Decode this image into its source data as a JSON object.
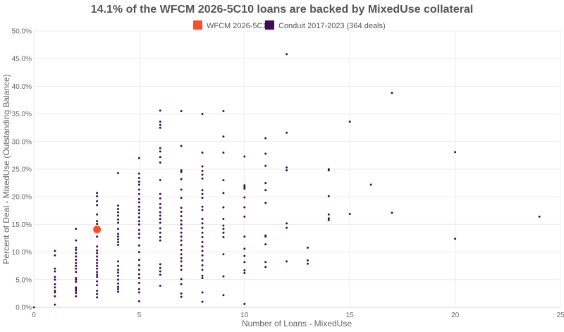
{
  "chart_data": {
    "type": "scatter",
    "title": "14.1% of the WFCM 2026-5C10 loans are backed by MixedUse collateral",
    "xlabel": "Number of Loans - MixedUse",
    "ylabel": "Percent of Deal - MixedUse (Outstanding Balance)",
    "xlim": [
      0,
      25
    ],
    "ylim": [
      0,
      50
    ],
    "x_ticks": [
      "0",
      "5",
      "10",
      "15",
      "20",
      "25"
    ],
    "x_tick_values": [
      0,
      5,
      10,
      15,
      20,
      25
    ],
    "y_ticks": [
      "0.0%",
      "5.0%",
      "10.0%",
      "15.0%",
      "20.0%",
      "25.0%",
      "30.0%",
      "35.0%",
      "40.0%",
      "45.0%",
      "50.0%"
    ],
    "y_tick_values": [
      0,
      5,
      10,
      15,
      20,
      25,
      30,
      35,
      40,
      45,
      50
    ],
    "grid": true,
    "legend_position": "top-center",
    "series": [
      {
        "name": "WFCM 2026-5C10",
        "color": "#f4512c",
        "points": [
          [
            3,
            14.1
          ]
        ]
      },
      {
        "name": "Conduit 2017-2023 (364 deals)",
        "color": "#3d0e57",
        "points": [
          [
            0,
            0.0
          ],
          [
            1,
            0.5
          ],
          [
            1,
            2.0
          ],
          [
            1,
            2.7
          ],
          [
            1,
            3.0
          ],
          [
            1,
            3.6
          ],
          [
            1,
            4.2
          ],
          [
            1,
            5.0
          ],
          [
            1,
            5.5
          ],
          [
            1,
            6.5
          ],
          [
            1,
            7.0
          ],
          [
            1,
            9.4
          ],
          [
            1,
            10.2
          ],
          [
            2,
            2.0
          ],
          [
            2,
            2.6
          ],
          [
            2,
            3.0
          ],
          [
            2,
            3.3
          ],
          [
            2,
            3.6
          ],
          [
            2,
            4.6
          ],
          [
            2,
            5.0
          ],
          [
            2,
            5.3
          ],
          [
            2,
            6.4
          ],
          [
            2,
            7.0
          ],
          [
            2,
            7.5
          ],
          [
            2,
            8.0
          ],
          [
            2,
            8.6
          ],
          [
            2,
            9.2
          ],
          [
            2,
            9.8
          ],
          [
            2,
            10.4
          ],
          [
            2,
            10.8
          ],
          [
            2,
            12.1
          ],
          [
            2,
            14.2
          ],
          [
            3,
            1.8
          ],
          [
            3,
            2.4
          ],
          [
            3,
            3.0
          ],
          [
            3,
            4.0
          ],
          [
            3,
            4.7
          ],
          [
            3,
            5.5
          ],
          [
            3,
            5.9
          ],
          [
            3,
            6.4
          ],
          [
            3,
            7.0
          ],
          [
            3,
            7.5
          ],
          [
            3,
            8.0
          ],
          [
            3,
            8.6
          ],
          [
            3,
            9.2
          ],
          [
            3,
            9.8
          ],
          [
            3,
            10.3
          ],
          [
            3,
            11.0
          ],
          [
            3,
            12.8
          ],
          [
            3,
            13.9
          ],
          [
            3,
            15.1
          ],
          [
            3,
            15.6
          ],
          [
            3,
            16.8
          ],
          [
            3,
            18.5
          ],
          [
            3,
            19.2
          ],
          [
            3,
            20.1
          ],
          [
            3,
            20.7
          ],
          [
            4,
            2.8
          ],
          [
            4,
            3.3
          ],
          [
            4,
            3.7
          ],
          [
            4,
            4.3
          ],
          [
            4,
            5.0
          ],
          [
            4,
            5.7
          ],
          [
            4,
            6.3
          ],
          [
            4,
            6.8
          ],
          [
            4,
            7.5
          ],
          [
            4,
            8.3
          ],
          [
            4,
            11.3
          ],
          [
            4,
            11.8
          ],
          [
            4,
            12.3
          ],
          [
            4,
            12.8
          ],
          [
            4,
            13.3
          ],
          [
            4,
            14.2
          ],
          [
            4,
            15.3
          ],
          [
            4,
            15.9
          ],
          [
            4,
            16.6
          ],
          [
            4,
            17.2
          ],
          [
            4,
            17.8
          ],
          [
            4,
            18.4
          ],
          [
            4,
            24.3
          ],
          [
            5,
            1.1
          ],
          [
            5,
            2.7
          ],
          [
            5,
            3.3
          ],
          [
            5,
            4.4
          ],
          [
            5,
            5.3
          ],
          [
            5,
            6.0
          ],
          [
            5,
            6.8
          ],
          [
            5,
            7.6
          ],
          [
            5,
            8.6
          ],
          [
            5,
            10.0
          ],
          [
            5,
            11.2
          ],
          [
            5,
            12.6
          ],
          [
            5,
            13.3
          ],
          [
            5,
            14.0
          ],
          [
            5,
            15.0
          ],
          [
            5,
            15.6
          ],
          [
            5,
            16.3
          ],
          [
            5,
            17.0
          ],
          [
            5,
            17.6
          ],
          [
            5,
            18.2
          ],
          [
            5,
            19.0
          ],
          [
            5,
            19.6
          ],
          [
            5,
            20.5
          ],
          [
            5,
            21.3
          ],
          [
            5,
            22.2
          ],
          [
            5,
            22.7
          ],
          [
            5,
            23.4
          ],
          [
            5,
            24.2
          ],
          [
            5,
            27.0
          ],
          [
            6,
            3.9
          ],
          [
            6,
            5.9
          ],
          [
            6,
            6.5
          ],
          [
            6,
            7.1
          ],
          [
            6,
            7.8
          ],
          [
            6,
            12.1
          ],
          [
            6,
            12.7
          ],
          [
            6,
            13.5
          ],
          [
            6,
            14.3
          ],
          [
            6,
            15.3
          ],
          [
            6,
            16.0
          ],
          [
            6,
            16.6
          ],
          [
            6,
            17.2
          ],
          [
            6,
            18.0
          ],
          [
            6,
            18.7
          ],
          [
            6,
            19.7
          ],
          [
            6,
            20.5
          ],
          [
            6,
            23.0
          ],
          [
            6,
            26.2
          ],
          [
            6,
            27.2
          ],
          [
            6,
            28.2
          ],
          [
            6,
            28.8
          ],
          [
            6,
            32.5
          ],
          [
            6,
            33.0
          ],
          [
            6,
            33.6
          ],
          [
            6,
            35.6
          ],
          [
            7,
            1.9
          ],
          [
            7,
            2.5
          ],
          [
            7,
            4.2
          ],
          [
            7,
            5.1
          ],
          [
            7,
            6.8
          ],
          [
            7,
            7.5
          ],
          [
            7,
            8.3
          ],
          [
            7,
            8.9
          ],
          [
            7,
            9.6
          ],
          [
            7,
            10.4
          ],
          [
            7,
            11.3
          ],
          [
            7,
            12.1
          ],
          [
            7,
            12.8
          ],
          [
            7,
            13.5
          ],
          [
            7,
            14.3
          ],
          [
            7,
            15.0
          ],
          [
            7,
            15.7
          ],
          [
            7,
            16.5
          ],
          [
            7,
            17.3
          ],
          [
            7,
            18.0
          ],
          [
            7,
            19.8
          ],
          [
            7,
            21.3
          ],
          [
            7,
            23.2
          ],
          [
            7,
            24.5
          ],
          [
            7,
            24.8
          ],
          [
            7,
            29.2
          ],
          [
            7,
            35.5
          ],
          [
            8,
            1.0
          ],
          [
            8,
            2.7
          ],
          [
            8,
            5.3
          ],
          [
            8,
            5.7
          ],
          [
            8,
            6.8
          ],
          [
            8,
            7.6
          ],
          [
            8,
            8.5
          ],
          [
            8,
            9.4
          ],
          [
            8,
            10.2
          ],
          [
            8,
            11.0
          ],
          [
            8,
            11.8
          ],
          [
            8,
            12.7
          ],
          [
            8,
            13.5
          ],
          [
            8,
            14.4
          ],
          [
            8,
            15.2
          ],
          [
            8,
            16.0
          ],
          [
            8,
            17.6
          ],
          [
            8,
            18.2
          ],
          [
            8,
            19.8
          ],
          [
            8,
            20.5
          ],
          [
            8,
            21.2
          ],
          [
            8,
            23.3
          ],
          [
            8,
            24.0
          ],
          [
            8,
            24.7
          ],
          [
            8,
            25.5
          ],
          [
            8,
            28.0
          ],
          [
            8,
            35.0
          ],
          [
            9,
            2.2
          ],
          [
            9,
            5.6
          ],
          [
            9,
            9.6
          ],
          [
            9,
            12.7
          ],
          [
            9,
            13.5
          ],
          [
            9,
            14.2
          ],
          [
            9,
            14.8
          ],
          [
            9,
            16.0
          ],
          [
            9,
            18.1
          ],
          [
            9,
            20.7
          ],
          [
            9,
            23.0
          ],
          [
            9,
            28.0
          ],
          [
            9,
            30.9
          ],
          [
            9,
            35.5
          ],
          [
            10,
            0.6
          ],
          [
            10,
            6.2
          ],
          [
            10,
            6.7
          ],
          [
            10,
            8.2
          ],
          [
            10,
            9.3
          ],
          [
            10,
            10.6
          ],
          [
            10,
            12.8
          ],
          [
            10,
            16.4
          ],
          [
            10,
            18.1
          ],
          [
            10,
            19.9
          ],
          [
            10,
            21.5
          ],
          [
            10,
            21.8
          ],
          [
            10,
            22.1
          ],
          [
            10,
            27.3
          ],
          [
            11,
            7.3
          ],
          [
            11,
            8.2
          ],
          [
            11,
            11.4
          ],
          [
            11,
            12.8
          ],
          [
            11,
            13.0
          ],
          [
            11,
            18.9
          ],
          [
            11,
            21.2
          ],
          [
            11,
            22.5
          ],
          [
            11,
            25.6
          ],
          [
            11,
            27.8
          ],
          [
            11,
            30.6
          ],
          [
            12,
            8.3
          ],
          [
            12,
            14.4
          ],
          [
            12,
            15.2
          ],
          [
            12,
            24.8
          ],
          [
            12,
            25.3
          ],
          [
            12,
            31.6
          ],
          [
            12,
            45.8
          ],
          [
            13,
            7.9
          ],
          [
            13,
            8.5
          ],
          [
            13,
            10.8
          ],
          [
            14,
            15.8
          ],
          [
            14,
            16.1
          ],
          [
            14,
            16.8
          ],
          [
            14,
            20.1
          ],
          [
            14,
            24.8
          ],
          [
            14,
            25.0
          ],
          [
            15,
            16.9
          ],
          [
            15,
            33.6
          ],
          [
            16,
            22.2
          ],
          [
            17,
            17.1
          ],
          [
            17,
            38.8
          ],
          [
            20,
            12.4
          ],
          [
            20,
            28.1
          ],
          [
            24,
            16.4
          ]
        ]
      }
    ]
  }
}
